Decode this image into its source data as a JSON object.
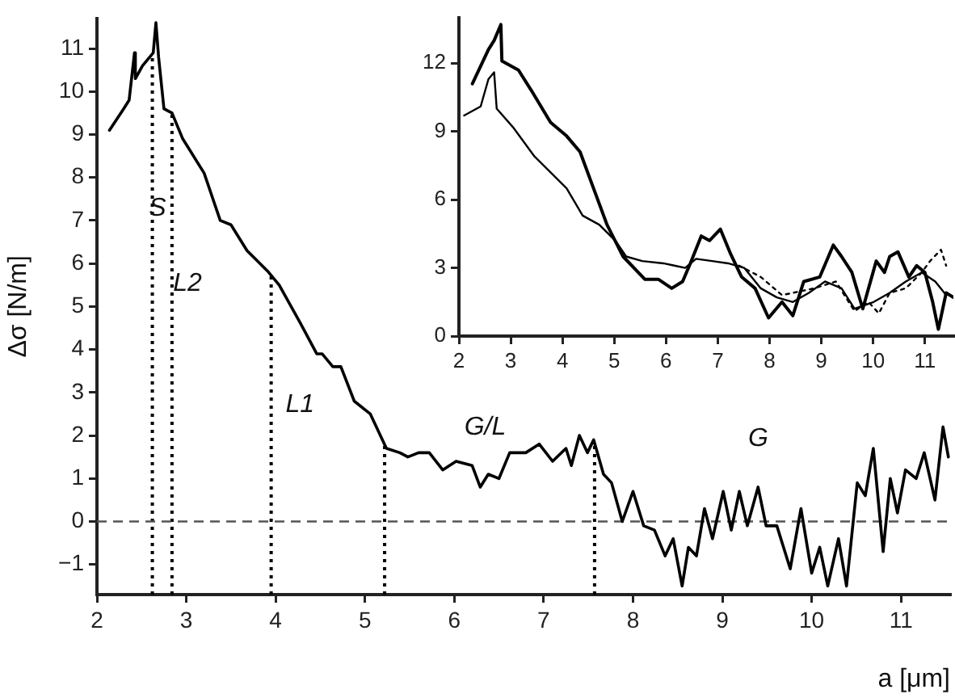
{
  "chart_data": [
    {
      "type": "line",
      "xlabel": "a [μm]",
      "ylabel": "Δσ [N/m]",
      "xlim": [
        2,
        11.55
      ],
      "ylim": [
        -1.7,
        11.7
      ],
      "xticks": [
        2,
        3,
        4,
        5,
        6,
        7,
        8,
        9,
        10,
        11
      ],
      "yticks": [
        -1,
        0,
        1,
        2,
        3,
        4,
        5,
        6,
        7,
        8,
        9,
        10,
        11
      ],
      "grid": false,
      "legend": false,
      "marker": "none",
      "series": [
        {
          "color": "#000000",
          "line_style": "solid",
          "x": [
            2.14,
            2.3,
            2.36,
            2.42,
            2.43,
            2.51,
            2.63,
            2.66,
            2.69,
            2.75,
            2.84,
            2.96,
            3.2,
            3.38,
            3.5,
            3.68,
            3.92,
            4.04,
            4.28,
            4.46,
            4.52,
            4.64,
            4.73,
            4.88,
            5.06,
            5.24,
            5.39,
            5.48,
            5.6,
            5.72,
            5.87,
            6.02,
            6.2,
            6.29,
            6.38,
            6.5,
            6.62,
            6.8,
            6.95,
            7.1,
            7.25,
            7.31,
            7.4,
            7.49,
            7.56,
            7.67,
            7.76,
            7.88,
            8.0,
            8.12,
            8.24,
            8.36,
            8.45,
            8.55,
            8.62,
            8.71,
            8.8,
            8.89,
            9.01,
            9.1,
            9.19,
            9.28,
            9.4,
            9.49,
            9.61,
            9.76,
            9.88,
            10.0,
            10.09,
            10.18,
            10.3,
            10.39,
            10.51,
            10.6,
            10.69,
            10.8,
            10.88,
            10.96,
            11.05,
            11.17,
            11.26,
            11.38,
            11.47,
            11.53
          ],
          "values": [
            9.1,
            9.6,
            9.8,
            10.9,
            10.3,
            10.6,
            10.9,
            11.6,
            10.8,
            9.6,
            9.5,
            8.9,
            8.1,
            7.0,
            6.9,
            6.3,
            5.8,
            5.5,
            4.6,
            3.9,
            3.9,
            3.6,
            3.6,
            2.8,
            2.5,
            1.7,
            1.6,
            1.5,
            1.6,
            1.6,
            1.2,
            1.4,
            1.3,
            0.8,
            1.1,
            1.0,
            1.6,
            1.6,
            1.8,
            1.4,
            1.7,
            1.3,
            2.0,
            1.6,
            1.9,
            1.1,
            0.9,
            0.0,
            0.7,
            -0.1,
            -0.2,
            -0.8,
            -0.4,
            -1.5,
            -0.6,
            -0.8,
            0.3,
            -0.4,
            0.7,
            -0.2,
            0.7,
            -0.1,
            0.8,
            -0.1,
            -0.1,
            -1.1,
            0.3,
            -1.2,
            -0.6,
            -1.5,
            -0.4,
            -1.5,
            0.9,
            0.6,
            1.7,
            -0.7,
            1.0,
            0.2,
            1.2,
            1.0,
            1.6,
            0.5,
            2.2,
            1.5
          ]
        }
      ],
      "ref_lines": [
        {
          "axis": "x",
          "value": 2.62,
          "line_style": "dotted",
          "color": "#000000"
        },
        {
          "axis": "x",
          "value": 2.84,
          "line_style": "dotted",
          "color": "#000000"
        },
        {
          "axis": "x",
          "value": 3.95,
          "line_style": "dotted",
          "color": "#000000"
        },
        {
          "axis": "x",
          "value": 5.22,
          "line_style": "dotted",
          "color": "#000000"
        },
        {
          "axis": "x",
          "value": 7.57,
          "line_style": "dotted",
          "color": "#000000"
        },
        {
          "axis": "y",
          "value": 0,
          "line_style": "dashed",
          "color": "#555555"
        }
      ],
      "annotations": [
        "S",
        "L2",
        "L1",
        "G/L",
        "G"
      ]
    },
    {
      "type": "line",
      "xlim": [
        2,
        11.55
      ],
      "ylim": [
        0,
        14
      ],
      "xticks": [
        2,
        3,
        4,
        5,
        6,
        7,
        8,
        9,
        10,
        11
      ],
      "yticks": [
        0,
        3,
        6,
        9,
        12
      ],
      "grid": false,
      "legend": false,
      "marker": "none",
      "series": [
        {
          "color": "#000000",
          "line_style": "solid",
          "x": [
            2.26,
            2.57,
            2.68,
            2.81,
            2.83,
            3.15,
            3.4,
            3.77,
            4.08,
            4.34,
            4.6,
            4.86,
            5.17,
            5.59,
            5.85,
            6.11,
            6.32,
            6.47,
            6.68,
            6.84,
            7.05,
            7.25,
            7.46,
            7.72,
            7.98,
            8.24,
            8.45,
            8.66,
            8.97,
            9.23,
            9.39,
            9.59,
            9.8,
            10.06,
            10.22,
            10.32,
            10.48,
            10.69,
            10.84,
            11.0,
            11.15,
            11.26,
            11.41,
            11.55
          ],
          "values": [
            11.1,
            12.6,
            13.0,
            13.7,
            12.1,
            11.7,
            10.8,
            9.4,
            8.8,
            8.1,
            6.5,
            4.9,
            3.5,
            2.5,
            2.5,
            2.1,
            2.4,
            3.2,
            4.4,
            4.2,
            4.7,
            3.6,
            2.6,
            2.1,
            0.8,
            1.5,
            0.9,
            2.4,
            2.6,
            4.0,
            3.5,
            2.8,
            1.2,
            3.3,
            2.8,
            3.5,
            3.7,
            2.6,
            3.1,
            2.8,
            1.5,
            0.3,
            1.9,
            1.7
          ]
        },
        {
          "color": "#000000",
          "line_style": "solid",
          "x": [
            2.1,
            2.42,
            2.57,
            2.68,
            2.73,
            3.04,
            3.46,
            3.77,
            4.08,
            4.39,
            4.71,
            5.02,
            5.23,
            5.54,
            5.95,
            6.16,
            6.37,
            6.58,
            6.89,
            7.2,
            7.51,
            7.83,
            8.14,
            8.45,
            8.76,
            9.07,
            9.39,
            9.64,
            10.01,
            10.32,
            10.63,
            10.94,
            11.2,
            11.41
          ],
          "values": [
            9.7,
            10.1,
            11.3,
            11.6,
            10.0,
            9.2,
            7.9,
            7.2,
            6.5,
            5.3,
            4.9,
            4.2,
            3.5,
            3.3,
            3.2,
            3.1,
            3.0,
            3.4,
            3.3,
            3.2,
            3.0,
            2.1,
            1.7,
            1.5,
            1.9,
            2.4,
            2.1,
            1.2,
            1.5,
            1.9,
            2.4,
            2.8,
            2.4,
            1.8
          ]
        },
        {
          "color": "#000000",
          "line_style": "dotted",
          "x": [
            7.41,
            7.83,
            8.24,
            8.86,
            9.28,
            9.64,
            9.91,
            10.11,
            10.32,
            10.63,
            10.94,
            11.1,
            11.31,
            11.41
          ],
          "values": [
            3.1,
            2.6,
            1.8,
            2.1,
            2.4,
            1.1,
            1.5,
            1.0,
            1.9,
            2.1,
            2.8,
            3.3,
            3.8,
            3.1
          ]
        }
      ]
    }
  ]
}
